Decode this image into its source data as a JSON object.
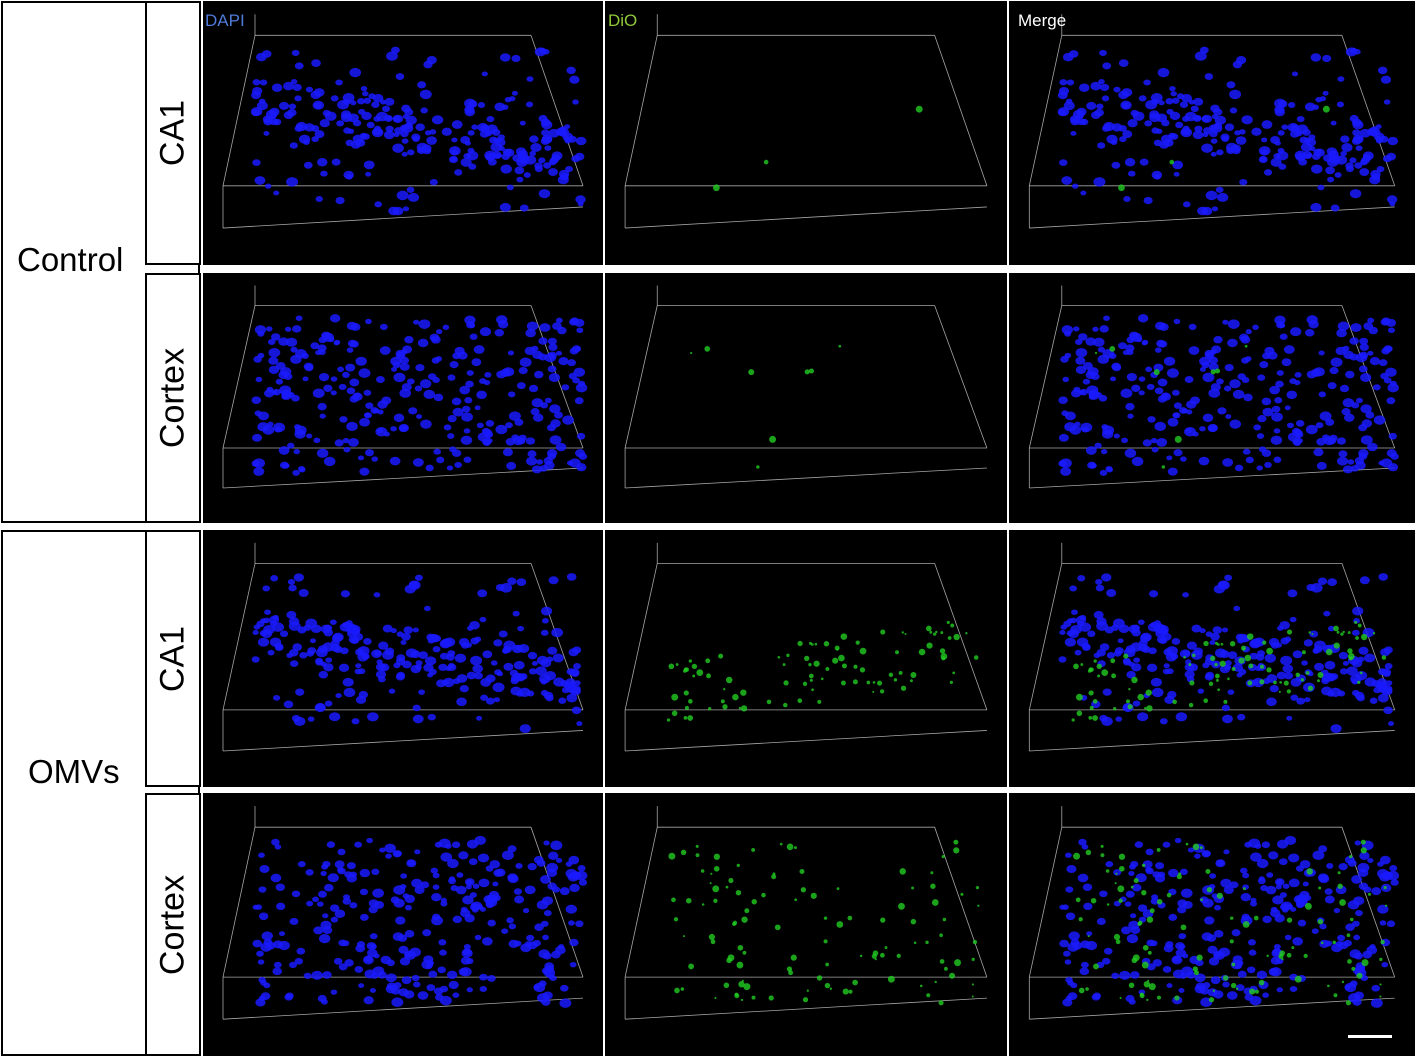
{
  "channels": [
    {
      "label": "DAPI",
      "color": "#4f7bd9"
    },
    {
      "label": "DiO",
      "color": "#8fc93a"
    },
    {
      "label": "Merge",
      "color": "#ffffff"
    }
  ],
  "groups": [
    {
      "label": "Control",
      "regions": [
        "CA1",
        "Cortex"
      ]
    },
    {
      "label": "OMVs",
      "regions": [
        "CA1",
        "Cortex"
      ]
    }
  ],
  "colors": {
    "nucleus": "#1a1aff",
    "vesicle": "#22cc22",
    "frame": "#cfcfcf",
    "panel_bg": "#000000"
  },
  "dio_signal_level": {
    "Control-CA1": 0.02,
    "Control-Cortex": 0.05,
    "OMVs-CA1": 0.6,
    "OMVs-Cortex": 0.7
  }
}
